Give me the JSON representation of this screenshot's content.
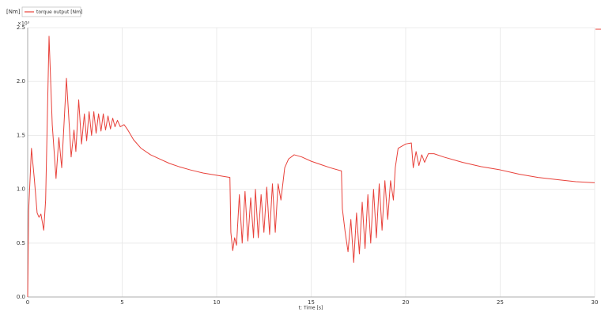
{
  "chart_data": {
    "type": "line",
    "y_unit": "[Nm]",
    "y_multiplier": "×10³",
    "x_label": "t: Time [s]",
    "x": [
      0,
      0.05,
      0.2,
      0.35,
      0.5,
      0.6,
      0.7,
      0.85,
      0.95,
      1.13,
      1.3,
      1.5,
      1.65,
      1.8,
      2.05,
      2.3,
      2.45,
      2.55,
      2.7,
      2.85,
      3.0,
      3.12,
      3.25,
      3.38,
      3.5,
      3.62,
      3.75,
      3.88,
      4.0,
      4.12,
      4.25,
      4.38,
      4.5,
      4.62,
      4.75,
      4.9,
      5.1,
      5.3,
      5.6,
      6.0,
      6.5,
      7.0,
      7.5,
      8.0,
      8.6,
      9.3,
      10.0,
      10.7,
      10.75,
      10.85,
      10.95,
      11.05,
      11.2,
      11.35,
      11.5,
      11.65,
      11.8,
      11.95,
      12.05,
      12.2,
      12.35,
      12.5,
      12.65,
      12.8,
      12.95,
      13.1,
      13.25,
      13.4,
      13.6,
      13.8,
      14.1,
      14.5,
      15.0,
      15.5,
      16.0,
      16.6,
      16.65,
      16.8,
      16.95,
      17.1,
      17.25,
      17.4,
      17.55,
      17.7,
      17.85,
      18.0,
      18.15,
      18.3,
      18.45,
      18.6,
      18.75,
      18.9,
      19.05,
      19.2,
      19.35,
      19.45,
      19.6,
      19.8,
      20.0,
      20.3,
      20.4,
      20.55,
      20.7,
      20.85,
      21.0,
      21.2,
      21.5,
      22.0,
      23.0,
      24.0,
      25.0,
      26.0,
      27.0,
      28.0,
      29.0,
      30.0
    ],
    "series": [
      {
        "name": "torque output [Nm]",
        "color": "#e8413a",
        "values": [
          0,
          0.8,
          1.38,
          1.1,
          0.78,
          0.74,
          0.77,
          0.62,
          0.9,
          2.42,
          1.6,
          1.1,
          1.48,
          1.2,
          2.03,
          1.3,
          1.55,
          1.35,
          1.83,
          1.42,
          1.7,
          1.45,
          1.72,
          1.5,
          1.72,
          1.52,
          1.7,
          1.54,
          1.7,
          1.55,
          1.68,
          1.56,
          1.66,
          1.58,
          1.64,
          1.58,
          1.6,
          1.55,
          1.46,
          1.38,
          1.32,
          1.28,
          1.24,
          1.21,
          1.18,
          1.15,
          1.13,
          1.11,
          0.6,
          0.43,
          0.55,
          0.48,
          0.95,
          0.5,
          0.98,
          0.52,
          0.92,
          0.55,
          1.0,
          0.55,
          0.95,
          0.6,
          1.02,
          0.58,
          1.05,
          0.6,
          1.05,
          0.9,
          1.2,
          1.28,
          1.32,
          1.3,
          1.26,
          1.23,
          1.2,
          1.17,
          0.82,
          0.6,
          0.42,
          0.72,
          0.32,
          0.78,
          0.4,
          0.88,
          0.45,
          0.95,
          0.5,
          1.0,
          0.55,
          1.05,
          0.62,
          1.08,
          0.72,
          1.08,
          0.9,
          1.2,
          1.38,
          1.4,
          1.42,
          1.43,
          1.2,
          1.35,
          1.22,
          1.32,
          1.25,
          1.33,
          1.33,
          1.3,
          1.25,
          1.21,
          1.18,
          1.14,
          1.11,
          1.09,
          1.07,
          1.06
        ]
      }
    ],
    "xlim": [
      0,
      30
    ],
    "xticks": [
      0,
      5,
      10,
      15,
      20,
      25,
      30
    ],
    "ylim": [
      0,
      2.5
    ],
    "yticks": [
      {
        "value": 0,
        "label": "0.0"
      },
      0.5,
      {
        "value": 1,
        "label": "1.0"
      },
      1.5,
      {
        "value": 2,
        "label": "2.0"
      },
      2.5
    ],
    "grid": true
  }
}
